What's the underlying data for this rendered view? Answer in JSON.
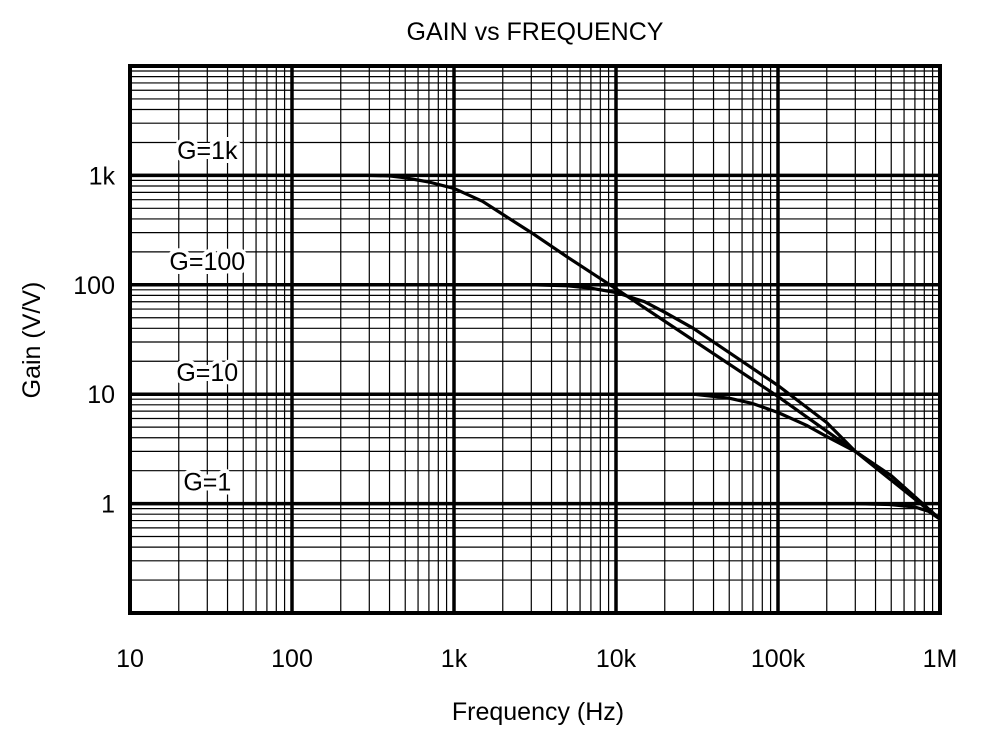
{
  "chart_data": {
    "type": "line",
    "title": "GAIN vs FREQUENCY",
    "xlabel": "Frequency (Hz)",
    "ylabel": "Gain (V/V)",
    "x_scale": "log",
    "y_scale": "log",
    "xlim": [
      10,
      1000000
    ],
    "ylim": [
      0.1,
      10000
    ],
    "grid": true,
    "x_ticks": [
      {
        "value": 10,
        "label": "10"
      },
      {
        "value": 100,
        "label": "100"
      },
      {
        "value": 1000,
        "label": "1k"
      },
      {
        "value": 10000,
        "label": "10k"
      },
      {
        "value": 100000,
        "label": "100k"
      },
      {
        "value": 1000000,
        "label": "1M"
      }
    ],
    "y_ticks": [
      {
        "value": 1,
        "label": "1"
      },
      {
        "value": 10,
        "label": "10"
      },
      {
        "value": 100,
        "label": "100"
      },
      {
        "value": 1000,
        "label": "1k"
      }
    ],
    "series": [
      {
        "name": "G=1",
        "x": [
          10,
          100,
          1000,
          10000,
          100000,
          300000,
          500000,
          700000,
          850000,
          1000000
        ],
        "y": [
          1,
          1,
          1,
          1,
          1,
          1,
          0.98,
          0.93,
          0.85,
          0.72
        ]
      },
      {
        "name": "G=10",
        "x": [
          10,
          100,
          1000,
          10000,
          30000,
          50000,
          70000,
          100000,
          150000,
          200000,
          300000,
          500000,
          1000000
        ],
        "y": [
          10,
          10,
          10,
          10,
          10,
          9.2,
          8.2,
          6.8,
          5.2,
          4.1,
          3.0,
          1.8,
          0.72
        ]
      },
      {
        "name": "G=100",
        "x": [
          10,
          100,
          1000,
          3000,
          5000,
          7000,
          10000,
          15000,
          20000,
          30000,
          50000,
          100000,
          200000,
          300000,
          500000,
          1000000
        ],
        "y": [
          100,
          100,
          100,
          100,
          98,
          93,
          85,
          70,
          56,
          40,
          24,
          12,
          5.5,
          3.0,
          1.8,
          0.72
        ]
      },
      {
        "name": "G=1k",
        "x": [
          10,
          100,
          300,
          400,
          500,
          700,
          1000,
          1500,
          2000,
          3000,
          5000,
          10000,
          100000,
          300000,
          1000000
        ],
        "y": [
          1000,
          1000,
          1000,
          990,
          950,
          870,
          760,
          580,
          440,
          300,
          180,
          92,
          9.5,
          3.0,
          0.72
        ]
      }
    ],
    "annotations": [
      {
        "text": "G=1k",
        "x": 30,
        "y": 1700
      },
      {
        "text": "G=100",
        "x": 30,
        "y": 165
      },
      {
        "text": "G=10",
        "x": 30,
        "y": 16
      },
      {
        "text": "G=1",
        "x": 30,
        "y": 1.6
      }
    ]
  }
}
